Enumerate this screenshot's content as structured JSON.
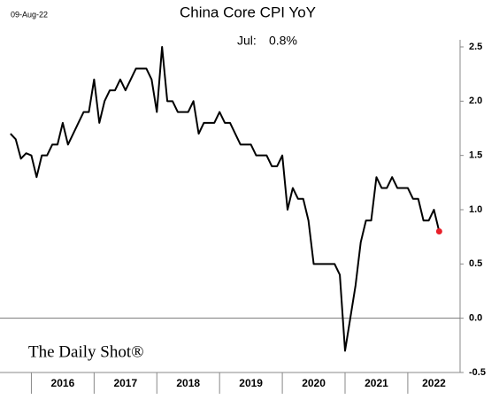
{
  "chart_data": {
    "type": "line",
    "title": "China Core CPI YoY",
    "date": "09-Aug-22",
    "annotation": [
      "Jul:",
      "0.8%"
    ],
    "watermark": "The Daily Shot®",
    "x": [
      "2015-09",
      "2015-10",
      "2015-11",
      "2015-12",
      "2016-01",
      "2016-02",
      "2016-03",
      "2016-04",
      "2016-05",
      "2016-06",
      "2016-07",
      "2016-08",
      "2016-09",
      "2016-10",
      "2016-11",
      "2016-12",
      "2017-01",
      "2017-02",
      "2017-03",
      "2017-04",
      "2017-05",
      "2017-06",
      "2017-07",
      "2017-08",
      "2017-09",
      "2017-10",
      "2017-11",
      "2017-12",
      "2018-01",
      "2018-02",
      "2018-03",
      "2018-04",
      "2018-05",
      "2018-06",
      "2018-07",
      "2018-08",
      "2018-09",
      "2018-10",
      "2018-11",
      "2018-12",
      "2019-01",
      "2019-02",
      "2019-03",
      "2019-04",
      "2019-05",
      "2019-06",
      "2019-07",
      "2019-08",
      "2019-09",
      "2019-10",
      "2019-11",
      "2019-12",
      "2020-01",
      "2020-02",
      "2020-03",
      "2020-04",
      "2020-05",
      "2020-06",
      "2020-07",
      "2020-08",
      "2020-09",
      "2020-10",
      "2020-11",
      "2020-12",
      "2021-01",
      "2021-02",
      "2021-03",
      "2021-04",
      "2021-05",
      "2021-06",
      "2021-07",
      "2021-08",
      "2021-09",
      "2021-10",
      "2021-11",
      "2021-12",
      "2022-01",
      "2022-02",
      "2022-03",
      "2022-04",
      "2022-05",
      "2022-06",
      "2022-07"
    ],
    "series": [
      {
        "name": "China Core CPI YoY",
        "color": "#000000",
        "last_marker_color": "#e8202a",
        "values": [
          1.7,
          1.65,
          1.47,
          1.52,
          1.5,
          1.3,
          1.5,
          1.5,
          1.6,
          1.6,
          1.8,
          1.6,
          1.7,
          1.8,
          1.9,
          1.9,
          2.2,
          1.8,
          2.0,
          2.1,
          2.1,
          2.2,
          2.1,
          2.2,
          2.3,
          2.3,
          2.3,
          2.2,
          1.9,
          2.5,
          2.0,
          2.0,
          1.9,
          1.9,
          1.9,
          2.0,
          1.7,
          1.8,
          1.8,
          1.8,
          1.9,
          1.8,
          1.8,
          1.7,
          1.6,
          1.6,
          1.6,
          1.5,
          1.5,
          1.5,
          1.4,
          1.4,
          1.5,
          1.0,
          1.2,
          1.1,
          1.1,
          0.9,
          0.5,
          0.5,
          0.5,
          0.5,
          0.5,
          0.4,
          -0.3,
          0.0,
          0.3,
          0.7,
          0.9,
          0.9,
          1.3,
          1.2,
          1.2,
          1.3,
          1.2,
          1.2,
          1.2,
          1.1,
          1.1,
          0.9,
          0.9,
          1.0,
          0.8
        ]
      }
    ],
    "xlim": [
      "2015-07",
      "2022-11"
    ],
    "xticks": [
      {
        "value": "2016-01",
        "label": "2016"
      },
      {
        "value": "2017-01",
        "label": "2017"
      },
      {
        "value": "2018-01",
        "label": "2018"
      },
      {
        "value": "2019-01",
        "label": "2019"
      },
      {
        "value": "2020-01",
        "label": "2020"
      },
      {
        "value": "2021-01",
        "label": "2021"
      },
      {
        "value": "2022-01",
        "label": "2022"
      }
    ],
    "ylim": [
      -0.5,
      2.5
    ],
    "yticks": [
      2.5,
      {
        "value": 2,
        "label": "2.0"
      },
      1.5,
      {
        "value": 1,
        "label": "1.0"
      },
      0.5,
      {
        "value": 0,
        "label": "0.0"
      },
      -0.5
    ],
    "zero_line": true,
    "y_axis_side": "right"
  }
}
